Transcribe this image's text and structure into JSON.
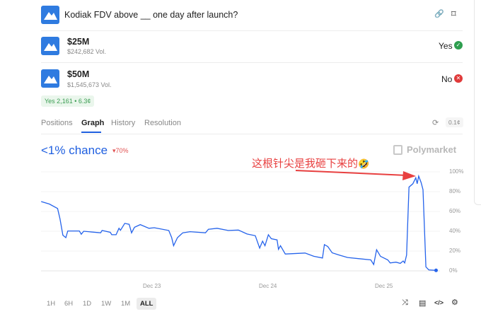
{
  "header": {
    "title": "Kodiak FDV above __ one day after launch?",
    "icons": [
      "link-icon",
      "bookmark-icon"
    ]
  },
  "markets": [
    {
      "label": "$25M",
      "volume": "$242,682 Vol.",
      "result": "Yes",
      "result_icon": "check-circle-icon",
      "result_color": "#2e9e4f"
    },
    {
      "label": "$50M",
      "volume": "$1,545,673 Vol.",
      "result": "No",
      "result_icon": "x-circle-icon",
      "result_color": "#e03a3a"
    }
  ],
  "position_badge": "Yes 2,161 • 6.3¢",
  "tabs": [
    {
      "label": "Positions"
    },
    {
      "label": "Graph",
      "active": true
    },
    {
      "label": "History"
    },
    {
      "label": "Resolution"
    }
  ],
  "tab_right": {
    "refresh_icon": "refresh-icon",
    "precision": "0.1¢"
  },
  "graph": {
    "chance": "<1% chance",
    "delta": "▾70%",
    "brand": "Polymarket",
    "annotation": "这根针尖是我砸下来的",
    "annotation_emoji": "🤣",
    "line_color": "#2563eb",
    "annotation_color": "#e84040"
  },
  "ranges": [
    {
      "label": "1H"
    },
    {
      "label": "6H"
    },
    {
      "label": "1D"
    },
    {
      "label": "1W"
    },
    {
      "label": "1M"
    },
    {
      "label": "ALL",
      "active": true
    }
  ],
  "toolbar_icons": [
    "shuffle-icon",
    "document-icon",
    "code-icon",
    "settings-icon"
  ],
  "chart_data": {
    "type": "line",
    "xlabel": "",
    "ylabel": "",
    "x_ticks": [
      "Dec 23",
      "Dec 24",
      "Dec 25"
    ],
    "y_ticks": [
      "100%",
      "80%",
      "60%",
      "40%",
      "20%",
      "0%"
    ],
    "ylim": [
      0,
      100
    ],
    "grid": true,
    "series": [
      {
        "x": [
          "Dec 22 01:12",
          "Dec 22 02:54",
          "Dec 22 04:36",
          "Dec 22 05:06",
          "Dec 22 05:42",
          "Dec 22 06:18",
          "Dec 22 06:42",
          "Dec 22 09:06",
          "Dec 22 09:30",
          "Dec 22 10:00",
          "Dec 22 13:30",
          "Dec 22 13:48",
          "Dec 22 15:30",
          "Dec 22 15:48",
          "Dec 22 16:42",
          "Dec 22 17:18",
          "Dec 22 17:36",
          "Dec 22 18:30",
          "Dec 22 19:24",
          "Dec 22 19:54",
          "Dec 22 20:30",
          "Dec 22 21:42",
          "Dec 22 23:30",
          "Dec 23 00:36",
          "Dec 23 03:36",
          "Dec 23 04:12",
          "Dec 23 04:36",
          "Dec 23 05:24",
          "Dec 23 06:30",
          "Dec 23 08:00",
          "Dec 23 11:12",
          "Dec 23 11:48",
          "Dec 23 13:36",
          "Dec 23 15:54",
          "Dec 23 18:00",
          "Dec 23 19:48",
          "Dec 23 21:30",
          "Dec 23 22:24",
          "Dec 23 23:00",
          "Dec 23 23:30",
          "Dec 24 00:12",
          "Dec 24 00:48",
          "Dec 24 02:00",
          "Dec 24 02:18",
          "Dec 24 02:42",
          "Dec 24 03:42",
          "Dec 24 07:48",
          "Dec 24 09:36",
          "Dec 24 11:24",
          "Dec 24 11:48",
          "Dec 24 12:30",
          "Dec 24 13:24",
          "Dec 24 14:54",
          "Dec 24 16:36",
          "Dec 24 21:24",
          "Dec 24 22:00",
          "Dec 24 22:36",
          "Dec 24 23:24",
          "Dec 25 00:54",
          "Dec 25 01:24",
          "Dec 25 02:36",
          "Dec 25 03:30",
          "Dec 25 04:06",
          "Dec 25 04:24",
          "Dec 25 04:48",
          "Dec 25 05:18",
          "Dec 25 06:06",
          "Dec 25 06:42",
          "Dec 25 07:00",
          "Dec 25 07:18",
          "Dec 25 07:48",
          "Dec 25 08:12",
          "Dec 25 08:48",
          "Dec 25 09:24",
          "Dec 25 10:54"
        ],
        "y": [
          70,
          67.5,
          63,
          52.6,
          36,
          33.6,
          40.3,
          40.3,
          37,
          40,
          38.4,
          40.8,
          38.9,
          36.5,
          36.5,
          43,
          41,
          48,
          47,
          38.4,
          44,
          46.7,
          43,
          43.6,
          40.8,
          33.6,
          25.4,
          33.6,
          38.4,
          39.6,
          38.4,
          42,
          43,
          40.8,
          41.2,
          37.2,
          35.5,
          23,
          30,
          25.4,
          36.5,
          32.5,
          31.3,
          21.8,
          25.4,
          17,
          18,
          14.7,
          13,
          26.5,
          24.6,
          18.2,
          15.9,
          13.5,
          11.1,
          6.4,
          21.3,
          14.7,
          11.1,
          8,
          8.8,
          7.6,
          10,
          8,
          15.9,
          84.6,
          88,
          94,
          88,
          95.7,
          89.3,
          82,
          4,
          1,
          0.5
        ]
      }
    ]
  }
}
